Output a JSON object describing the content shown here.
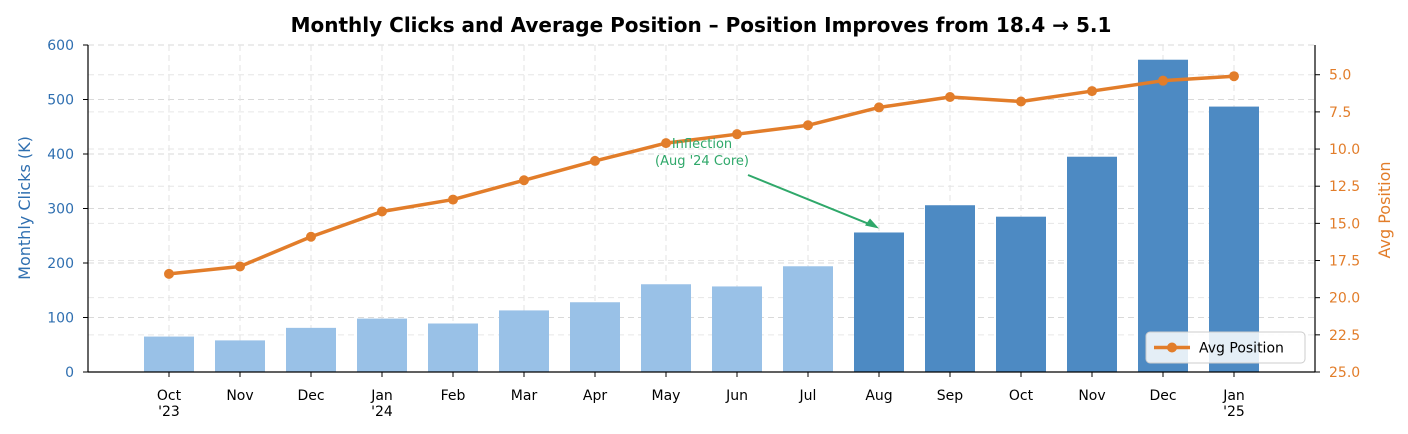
{
  "chart_data": {
    "type": "bar",
    "title": "Monthly Clicks and Average Position – Position Improves from 18.4 → 5.1",
    "categories": [
      [
        "Oct",
        "'23"
      ],
      [
        "Nov"
      ],
      [
        "Dec"
      ],
      [
        "Jan",
        "'24"
      ],
      [
        "Feb"
      ],
      [
        "Mar"
      ],
      [
        "Apr"
      ],
      [
        "May"
      ],
      [
        "Jun"
      ],
      [
        "Jul"
      ],
      [
        "Aug"
      ],
      [
        "Sep"
      ],
      [
        "Oct"
      ],
      [
        "Nov"
      ],
      [
        "Dec"
      ],
      [
        "Jan",
        "'25"
      ]
    ],
    "series": [
      {
        "name": "Monthly Clicks (K)",
        "type": "bar",
        "axis": "left",
        "values": [
          65,
          58,
          81,
          98,
          89,
          113,
          128,
          161,
          157,
          194,
          256,
          306,
          285,
          395,
          573,
          487
        ],
        "highlight_from_index": 10,
        "colors": {
          "before": "#99c1e7",
          "after": "#4d8ac3"
        }
      },
      {
        "name": "Avg Position",
        "type": "line",
        "axis": "right",
        "values": [
          18.4,
          17.9,
          15.9,
          14.2,
          13.4,
          12.1,
          10.8,
          9.6,
          9.0,
          8.4,
          7.2,
          6.5,
          6.8,
          6.1,
          5.4,
          5.1
        ],
        "color": "#e27d2a"
      }
    ],
    "ylabel": "Monthly Clicks (K)",
    "ylim": [
      0,
      600
    ],
    "yticks": [
      0,
      100,
      200,
      300,
      400,
      500,
      600
    ],
    "ylabel_right": "Avg Position",
    "ylim_right": [
      25.0,
      3.0
    ],
    "yticks_right": [
      "5.0",
      "7.5",
      "10.0",
      "12.5",
      "15.0",
      "17.5",
      "20.0",
      "22.5",
      "25.0"
    ],
    "right_axis_inverted": true,
    "left_axis_color": "#2f6fb0",
    "right_axis_color": "#e27d2a",
    "grid": true,
    "legend": {
      "position": "bottom-right",
      "entries": [
        "Avg Position"
      ]
    },
    "annotation": {
      "lines": [
        "Inflection",
        "(Aug '24 Core)"
      ],
      "points_to_index": 10,
      "color": "#2fa86a"
    }
  }
}
